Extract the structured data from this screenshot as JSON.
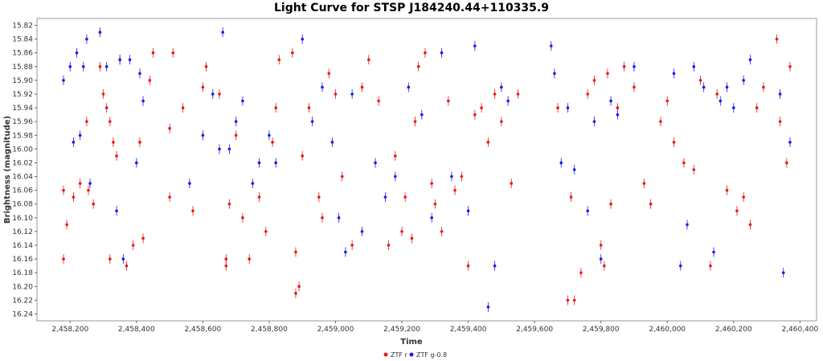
{
  "chart_data": {
    "type": "scatter",
    "title": "Light Curve for STSP J184240.44+110335.9",
    "xlabel": "Time",
    "ylabel": "Brightness (magnitude)",
    "xlim": [
      2458100,
      2460450
    ],
    "ylim": [
      16.25,
      15.81
    ],
    "y_inverted": true,
    "grid": false,
    "legend_position": "bottom-center",
    "x_ticks": [
      2458200,
      2458400,
      2458600,
      2458800,
      2459000,
      2459200,
      2459400,
      2459600,
      2459800,
      2460000,
      2460200,
      2460400
    ],
    "x_tick_labels": [
      "2,458,200",
      "2,458,400",
      "2,458,600",
      "2,458,800",
      "2,459,000",
      "2,459,200",
      "2,459,400",
      "2,459,600",
      "2,459,800",
      "2,460,000",
      "2,460,200",
      "2,460,400"
    ],
    "y_ticks": [
      15.82,
      15.84,
      15.86,
      15.88,
      15.9,
      15.92,
      15.94,
      15.96,
      15.98,
      16.0,
      16.02,
      16.04,
      16.06,
      16.08,
      16.1,
      16.12,
      16.14,
      16.16,
      16.18,
      16.2,
      16.22,
      16.24
    ],
    "y_tick_labels": [
      "15.82",
      "15.84",
      "15.86",
      "15.88",
      "15.90",
      "15.92",
      "15.94",
      "15.96",
      "15.98",
      "16.00",
      "16.02",
      "16.04",
      "16.06",
      "16.08",
      "16.10",
      "16.12",
      "16.14",
      "16.16",
      "16.18",
      "16.20",
      "16.22",
      "16.24"
    ],
    "series": [
      {
        "name": "ZTF r",
        "color": "#e8191c",
        "points": [
          [
            2458180,
            16.06
          ],
          [
            2458180,
            16.16
          ],
          [
            2458190,
            16.11
          ],
          [
            2458210,
            16.07
          ],
          [
            2458230,
            16.05
          ],
          [
            2458250,
            15.96
          ],
          [
            2458255,
            16.06
          ],
          [
            2458270,
            16.08
          ],
          [
            2458290,
            15.88
          ],
          [
            2458300,
            15.92
          ],
          [
            2458310,
            15.94
          ],
          [
            2458320,
            15.96
          ],
          [
            2458320,
            16.16
          ],
          [
            2458330,
            15.99
          ],
          [
            2458340,
            16.01
          ],
          [
            2458350,
            15.87
          ],
          [
            2458370,
            16.17
          ],
          [
            2458390,
            16.14
          ],
          [
            2458420,
            16.13
          ],
          [
            2458410,
            15.99
          ],
          [
            2458440,
            15.9
          ],
          [
            2458450,
            15.86
          ],
          [
            2458500,
            15.97
          ],
          [
            2458500,
            16.07
          ],
          [
            2458510,
            15.86
          ],
          [
            2458540,
            15.94
          ],
          [
            2458570,
            16.09
          ],
          [
            2458600,
            15.91
          ],
          [
            2458610,
            15.88
          ],
          [
            2458650,
            15.92
          ],
          [
            2458670,
            16.16
          ],
          [
            2458670,
            16.17
          ],
          [
            2458680,
            16.08
          ],
          [
            2458700,
            15.98
          ],
          [
            2458720,
            16.1
          ],
          [
            2458740,
            16.16
          ],
          [
            2458770,
            16.07
          ],
          [
            2458790,
            16.12
          ],
          [
            2458810,
            15.99
          ],
          [
            2458820,
            15.94
          ],
          [
            2458830,
            15.87
          ],
          [
            2458870,
            15.86
          ],
          [
            2458880,
            16.15
          ],
          [
            2458880,
            16.21
          ],
          [
            2458890,
            16.2
          ],
          [
            2458900,
            16.01
          ],
          [
            2458920,
            15.94
          ],
          [
            2458950,
            16.07
          ],
          [
            2458960,
            16.1
          ],
          [
            2458980,
            15.89
          ],
          [
            2459000,
            15.92
          ],
          [
            2459020,
            16.04
          ],
          [
            2459050,
            16.14
          ],
          [
            2459080,
            15.91
          ],
          [
            2459100,
            15.87
          ],
          [
            2459130,
            15.93
          ],
          [
            2459160,
            16.14
          ],
          [
            2459180,
            16.01
          ],
          [
            2459200,
            16.12
          ],
          [
            2459210,
            16.07
          ],
          [
            2459230,
            16.13
          ],
          [
            2459240,
            15.96
          ],
          [
            2459250,
            15.88
          ],
          [
            2459270,
            15.86
          ],
          [
            2459290,
            16.05
          ],
          [
            2459300,
            16.08
          ],
          [
            2459320,
            16.12
          ],
          [
            2459340,
            15.93
          ],
          [
            2459360,
            16.06
          ],
          [
            2459380,
            16.04
          ],
          [
            2459400,
            16.17
          ],
          [
            2459420,
            15.95
          ],
          [
            2459440,
            15.94
          ],
          [
            2459460,
            15.99
          ],
          [
            2459480,
            15.92
          ],
          [
            2459500,
            15.96
          ],
          [
            2459530,
            16.05
          ],
          [
            2459550,
            15.92
          ],
          [
            2459670,
            15.94
          ],
          [
            2459700,
            16.22
          ],
          [
            2459710,
            16.07
          ],
          [
            2459720,
            16.22
          ],
          [
            2459740,
            16.18
          ],
          [
            2459760,
            15.92
          ],
          [
            2459780,
            15.9
          ],
          [
            2459800,
            16.14
          ],
          [
            2459810,
            16.17
          ],
          [
            2459820,
            15.89
          ],
          [
            2459830,
            16.08
          ],
          [
            2459850,
            15.94
          ],
          [
            2459870,
            15.88
          ],
          [
            2459900,
            15.91
          ],
          [
            2459930,
            16.05
          ],
          [
            2459950,
            16.08
          ],
          [
            2459980,
            15.96
          ],
          [
            2460000,
            15.93
          ],
          [
            2460020,
            15.99
          ],
          [
            2460050,
            16.02
          ],
          [
            2460080,
            16.03
          ],
          [
            2460100,
            15.9
          ],
          [
            2460130,
            16.17
          ],
          [
            2460150,
            15.92
          ],
          [
            2460180,
            16.06
          ],
          [
            2460210,
            16.09
          ],
          [
            2460230,
            16.07
          ],
          [
            2460250,
            16.11
          ],
          [
            2460270,
            15.94
          ],
          [
            2460290,
            15.91
          ],
          [
            2460330,
            15.84
          ],
          [
            2460340,
            15.96
          ],
          [
            2460360,
            16.02
          ],
          [
            2460370,
            15.88
          ]
        ]
      },
      {
        "name": "ZTF g-0.8",
        "color": "#1c1ce8",
        "points": [
          [
            2458180,
            15.9
          ],
          [
            2458200,
            15.88
          ],
          [
            2458210,
            15.99
          ],
          [
            2458220,
            15.86
          ],
          [
            2458230,
            15.98
          ],
          [
            2458240,
            15.88
          ],
          [
            2458250,
            15.84
          ],
          [
            2458260,
            16.05
          ],
          [
            2458290,
            15.83
          ],
          [
            2458310,
            15.88
          ],
          [
            2458340,
            16.09
          ],
          [
            2458350,
            15.87
          ],
          [
            2458360,
            16.16
          ],
          [
            2458380,
            15.87
          ],
          [
            2458400,
            16.02
          ],
          [
            2458410,
            15.89
          ],
          [
            2458420,
            15.93
          ],
          [
            2458560,
            16.05
          ],
          [
            2458600,
            15.98
          ],
          [
            2458630,
            15.92
          ],
          [
            2458650,
            16.0
          ],
          [
            2458660,
            15.83
          ],
          [
            2458680,
            16.0
          ],
          [
            2458700,
            15.96
          ],
          [
            2458720,
            15.93
          ],
          [
            2458750,
            16.05
          ],
          [
            2458770,
            16.02
          ],
          [
            2458800,
            15.98
          ],
          [
            2458820,
            16.02
          ],
          [
            2458900,
            15.84
          ],
          [
            2458930,
            15.96
          ],
          [
            2458960,
            15.91
          ],
          [
            2458990,
            15.99
          ],
          [
            2459010,
            16.1
          ],
          [
            2459030,
            16.15
          ],
          [
            2459050,
            15.92
          ],
          [
            2459080,
            16.12
          ],
          [
            2459120,
            16.02
          ],
          [
            2459150,
            16.07
          ],
          [
            2459180,
            16.04
          ],
          [
            2459220,
            15.91
          ],
          [
            2459260,
            15.95
          ],
          [
            2459290,
            16.1
          ],
          [
            2459320,
            15.86
          ],
          [
            2459350,
            16.04
          ],
          [
            2459400,
            16.09
          ],
          [
            2459420,
            15.85
          ],
          [
            2459460,
            16.23
          ],
          [
            2459480,
            16.17
          ],
          [
            2459500,
            15.91
          ],
          [
            2459520,
            15.93
          ],
          [
            2459650,
            15.85
          ],
          [
            2459660,
            15.89
          ],
          [
            2459680,
            16.02
          ],
          [
            2459700,
            15.94
          ],
          [
            2459720,
            16.03
          ],
          [
            2459760,
            16.09
          ],
          [
            2459780,
            15.96
          ],
          [
            2459800,
            16.16
          ],
          [
            2459830,
            15.93
          ],
          [
            2459850,
            15.95
          ],
          [
            2459900,
            15.88
          ],
          [
            2460020,
            15.89
          ],
          [
            2460040,
            16.17
          ],
          [
            2460060,
            16.11
          ],
          [
            2460080,
            15.88
          ],
          [
            2460110,
            15.91
          ],
          [
            2460140,
            16.15
          ],
          [
            2460160,
            15.93
          ],
          [
            2460180,
            15.91
          ],
          [
            2460200,
            15.94
          ],
          [
            2460230,
            15.9
          ],
          [
            2460250,
            15.87
          ],
          [
            2460340,
            15.92
          ],
          [
            2460350,
            16.18
          ],
          [
            2460370,
            15.99
          ]
        ]
      }
    ]
  }
}
